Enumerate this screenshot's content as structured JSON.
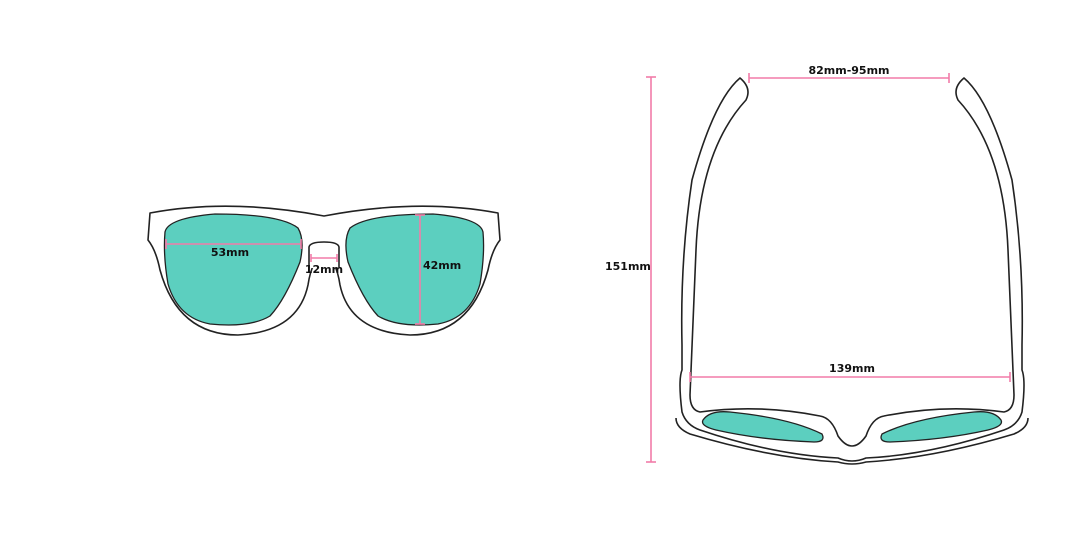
{
  "colors": {
    "lens": "#5ccfbf",
    "dimension_line": "#f27ca8",
    "outline": "#222222"
  },
  "front_view": {
    "lens_width": "53mm",
    "bridge_width": "12mm",
    "lens_height": "42mm"
  },
  "top_view": {
    "total_length": "151mm",
    "temple_spread": "82mm-95mm",
    "frame_width": "139mm"
  }
}
